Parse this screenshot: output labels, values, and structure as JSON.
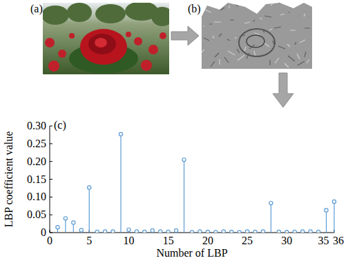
{
  "panel_labels": [
    "(a)",
    "(b)"
  ],
  "chart_data": {
    "type": "stem",
    "annotation": "(c)",
    "x_label": "Number of LBP",
    "y_label": "LBP coefficient value",
    "x": [
      1,
      2,
      3,
      4,
      5,
      6,
      7,
      8,
      9,
      10,
      11,
      12,
      13,
      14,
      15,
      16,
      17,
      18,
      19,
      20,
      21,
      22,
      23,
      24,
      25,
      26,
      27,
      28,
      29,
      30,
      31,
      32,
      33,
      34,
      35,
      36
    ],
    "values": [
      0.015,
      0.04,
      0.028,
      0.007,
      0.127,
      0.002,
      0.003,
      0.003,
      0.277,
      0.008,
      0.003,
      0.002,
      0.006,
      0.003,
      0.002,
      0.006,
      0.205,
      0.001,
      0.003,
      0.002,
      0.001,
      0.003,
      0.002,
      0.001,
      0.003,
      0.002,
      0.003,
      0.083,
      0.002,
      0.001,
      0.002,
      0.003,
      0.003,
      0.002,
      0.063,
      0.087
    ],
    "color": "#5b9bd5",
    "marker": "circle",
    "xlim": [
      0,
      36
    ],
    "xticks": [
      0,
      5,
      10,
      15,
      20,
      25,
      30,
      35,
      36
    ],
    "ylim": [
      0,
      0.3
    ],
    "yticks": [
      0,
      0.05,
      {
        "value": 0.1,
        "label": "0.10"
      },
      0.15,
      {
        "value": 0.2,
        "label": "0.20"
      },
      0.25,
      {
        "value": 0.3,
        "label": "0.30"
      }
    ]
  }
}
